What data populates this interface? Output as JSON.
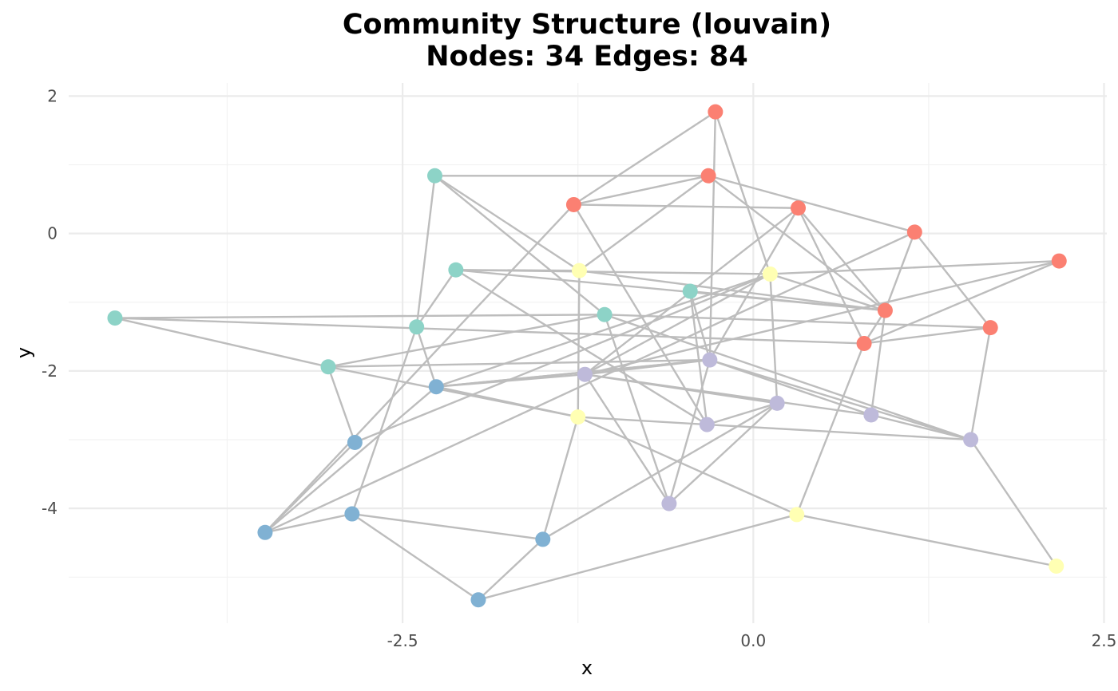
{
  "chart_data": {
    "type": "scatter",
    "title": "Community Structure (louvain)",
    "subtitle": "Nodes: 34 Edges: 84",
    "xlabel": "x",
    "ylabel": "y",
    "xlim": [
      -4.88,
      2.52
    ],
    "ylim": [
      -5.67,
      2.19
    ],
    "x_ticks": [
      {
        "value": -2.5,
        "label": "-2.5"
      },
      {
        "value": 0,
        "label": "0.0"
      },
      {
        "value": 2.5,
        "label": "2.5"
      }
    ],
    "y_ticks": [
      {
        "value": 2,
        "label": "2"
      },
      {
        "value": 0,
        "label": "0"
      },
      {
        "value": -2,
        "label": "-2"
      },
      {
        "value": -4,
        "label": "-4"
      }
    ],
    "grid": true,
    "legend": "none",
    "community_colors": {
      "1": "#8dd3c7",
      "2": "#ffffb3",
      "3": "#bebada",
      "4": "#fb8072",
      "5": "#80b1d3"
    },
    "edge_color": "#bdbdbd",
    "nodes": [
      {
        "id": "n0",
        "x": -0.27,
        "y": 1.77,
        "community": 4
      },
      {
        "id": "n1",
        "x": -0.32,
        "y": 0.84,
        "community": 4
      },
      {
        "id": "n2",
        "x": -1.28,
        "y": 0.42,
        "community": 4
      },
      {
        "id": "n3",
        "x": 0.32,
        "y": 0.37,
        "community": 4
      },
      {
        "id": "n4",
        "x": 1.15,
        "y": 0.02,
        "community": 4
      },
      {
        "id": "n5",
        "x": 2.18,
        "y": -0.4,
        "community": 4
      },
      {
        "id": "n6",
        "x": 0.94,
        "y": -1.12,
        "community": 4
      },
      {
        "id": "n7",
        "x": 1.69,
        "y": -1.37,
        "community": 4
      },
      {
        "id": "n8",
        "x": 0.79,
        "y": -1.6,
        "community": 4
      },
      {
        "id": "n9",
        "x": -2.27,
        "y": 0.84,
        "community": 1
      },
      {
        "id": "n10",
        "x": -2.12,
        "y": -0.53,
        "community": 1
      },
      {
        "id": "n11",
        "x": -0.45,
        "y": -0.84,
        "community": 1
      },
      {
        "id": "n12",
        "x": -1.06,
        "y": -1.18,
        "community": 1
      },
      {
        "id": "n13",
        "x": -4.55,
        "y": -1.23,
        "community": 1
      },
      {
        "id": "n14",
        "x": -2.4,
        "y": -1.36,
        "community": 1
      },
      {
        "id": "n15",
        "x": -3.03,
        "y": -1.94,
        "community": 1
      },
      {
        "id": "n16",
        "x": -1.24,
        "y": -0.54,
        "community": 2
      },
      {
        "id": "n17",
        "x": 0.12,
        "y": -0.59,
        "community": 2
      },
      {
        "id": "n18",
        "x": -1.25,
        "y": -2.67,
        "community": 2
      },
      {
        "id": "n19",
        "x": 0.31,
        "y": -4.09,
        "community": 2
      },
      {
        "id": "n20",
        "x": 2.16,
        "y": -4.84,
        "community": 2
      },
      {
        "id": "n21",
        "x": -0.31,
        "y": -1.84,
        "community": 3
      },
      {
        "id": "n22",
        "x": -1.2,
        "y": -2.05,
        "community": 3
      },
      {
        "id": "n23",
        "x": 0.17,
        "y": -2.47,
        "community": 3
      },
      {
        "id": "n24",
        "x": 0.84,
        "y": -2.64,
        "community": 3
      },
      {
        "id": "n25",
        "x": -0.33,
        "y": -2.78,
        "community": 3
      },
      {
        "id": "n26",
        "x": 1.55,
        "y": -3.0,
        "community": 3
      },
      {
        "id": "n27",
        "x": -0.6,
        "y": -3.93,
        "community": 3
      },
      {
        "id": "n28",
        "x": -2.26,
        "y": -2.23,
        "community": 5
      },
      {
        "id": "n29",
        "x": -2.84,
        "y": -3.04,
        "community": 5
      },
      {
        "id": "n30",
        "x": -2.86,
        "y": -4.08,
        "community": 5
      },
      {
        "id": "n31",
        "x": -3.48,
        "y": -4.35,
        "community": 5
      },
      {
        "id": "n32",
        "x": -1.5,
        "y": -4.45,
        "community": 5
      },
      {
        "id": "n33",
        "x": -1.96,
        "y": -5.33,
        "community": 5
      }
    ],
    "edges": [
      [
        "n0",
        "n2"
      ],
      [
        "n0",
        "n17"
      ],
      [
        "n1",
        "n9"
      ],
      [
        "n1",
        "n2"
      ],
      [
        "n1",
        "n16"
      ],
      [
        "n1",
        "n4"
      ],
      [
        "n1",
        "n6"
      ],
      [
        "n2",
        "n3"
      ],
      [
        "n2",
        "n31"
      ],
      [
        "n2",
        "n25"
      ],
      [
        "n3",
        "n21"
      ],
      [
        "n3",
        "n6"
      ],
      [
        "n4",
        "n7"
      ],
      [
        "n6",
        "n4"
      ],
      [
        "n6",
        "n8"
      ],
      [
        "n6",
        "n24"
      ],
      [
        "n5",
        "n17"
      ],
      [
        "n5",
        "n8"
      ],
      [
        "n7",
        "n8"
      ],
      [
        "n7",
        "n26"
      ],
      [
        "n8",
        "n19"
      ],
      [
        "n9",
        "n14"
      ],
      [
        "n9",
        "n16"
      ],
      [
        "n10",
        "n16"
      ],
      [
        "n10",
        "n17"
      ],
      [
        "n10",
        "n6"
      ],
      [
        "n10",
        "n25"
      ],
      [
        "n10",
        "n14"
      ],
      [
        "n11",
        "n6"
      ],
      [
        "n11",
        "n25"
      ],
      [
        "n12",
        "n7"
      ],
      [
        "n12",
        "n13"
      ],
      [
        "n12",
        "n15"
      ],
      [
        "n13",
        "n15"
      ],
      [
        "n13",
        "n8"
      ],
      [
        "n14",
        "n30"
      ],
      [
        "n15",
        "n29"
      ],
      [
        "n15",
        "n18"
      ],
      [
        "n15",
        "n21"
      ],
      [
        "n16",
        "n18"
      ],
      [
        "n17",
        "n23"
      ],
      [
        "n17",
        "n22"
      ],
      [
        "n17",
        "n28"
      ],
      [
        "n17",
        "n29"
      ],
      [
        "n18",
        "n25"
      ],
      [
        "n18",
        "n32"
      ],
      [
        "n18",
        "n19"
      ],
      [
        "n21",
        "n22"
      ],
      [
        "n21",
        "n26"
      ],
      [
        "n21",
        "n27"
      ],
      [
        "n21",
        "n28"
      ],
      [
        "n21",
        "n24"
      ],
      [
        "n22",
        "n28"
      ],
      [
        "n22",
        "n27"
      ],
      [
        "n22",
        "n24"
      ],
      [
        "n22",
        "n23"
      ],
      [
        "n22",
        "n5"
      ],
      [
        "n23",
        "n27"
      ],
      [
        "n25",
        "n26"
      ],
      [
        "n25",
        "n23"
      ],
      [
        "n26",
        "n20"
      ],
      [
        "n28",
        "n31"
      ],
      [
        "n29",
        "n31"
      ],
      [
        "n30",
        "n31"
      ],
      [
        "n30",
        "n32"
      ],
      [
        "n30",
        "n33"
      ],
      [
        "n31",
        "n4"
      ],
      [
        "n32",
        "n33"
      ],
      [
        "n32",
        "n23"
      ],
      [
        "n33",
        "n19"
      ],
      [
        "n19",
        "n20"
      ],
      [
        "n24",
        "n26"
      ],
      [
        "n12",
        "n26"
      ],
      [
        "n16",
        "n6"
      ],
      [
        "n22",
        "n3"
      ],
      [
        "n28",
        "n21"
      ],
      [
        "n0",
        "n21"
      ],
      [
        "n11",
        "n21"
      ],
      [
        "n9",
        "n12"
      ],
      [
        "n14",
        "n28"
      ],
      [
        "n3",
        "n8"
      ],
      [
        "n17",
        "n6"
      ],
      [
        "n18",
        "n28"
      ],
      [
        "n27",
        "n12"
      ]
    ]
  }
}
